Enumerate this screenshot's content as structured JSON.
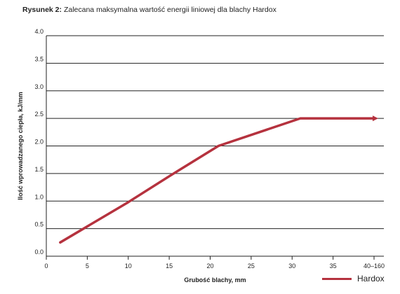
{
  "title": {
    "prefix": "Rysunek 2:",
    "text": "Zalecana maksymalna wartość energii liniowej dla blachy Hardox"
  },
  "colors": {
    "series": "#b5323e",
    "grid": "#222222",
    "text": "#222222"
  },
  "chart_data": {
    "type": "line",
    "title": "Rysunek 2: Zalecana maksymalna wartość energii liniowej dla blachy Hardox",
    "xlabel": "Grubość blachy, mm",
    "ylabel": "Ilość wprowadzanego ciepła, kJ/mm",
    "xlim": [
      0,
      40
    ],
    "ylim": [
      0,
      4.0
    ],
    "x_ticks": [
      "0",
      "5",
      "10",
      "15",
      "20",
      "25",
      "30",
      "35",
      "40–160"
    ],
    "y_ticks": [
      "0.0",
      "0.5",
      "1.0",
      "1.5",
      "2.0",
      "2.5",
      "3.0",
      "3.5",
      "4.0"
    ],
    "y_tick_values": [
      0,
      0.5,
      1.0,
      1.5,
      2.0,
      2.5,
      3.0,
      3.5,
      4.0
    ],
    "grid": "horizontal",
    "legend_position": "bottom-right",
    "series": [
      {
        "name": "Hardox",
        "x": [
          1.7,
          10,
          15,
          21,
          31,
          40
        ],
        "y": [
          0.25,
          0.98,
          1.45,
          2.0,
          2.5,
          2.5
        ],
        "arrow_end": true
      }
    ]
  }
}
